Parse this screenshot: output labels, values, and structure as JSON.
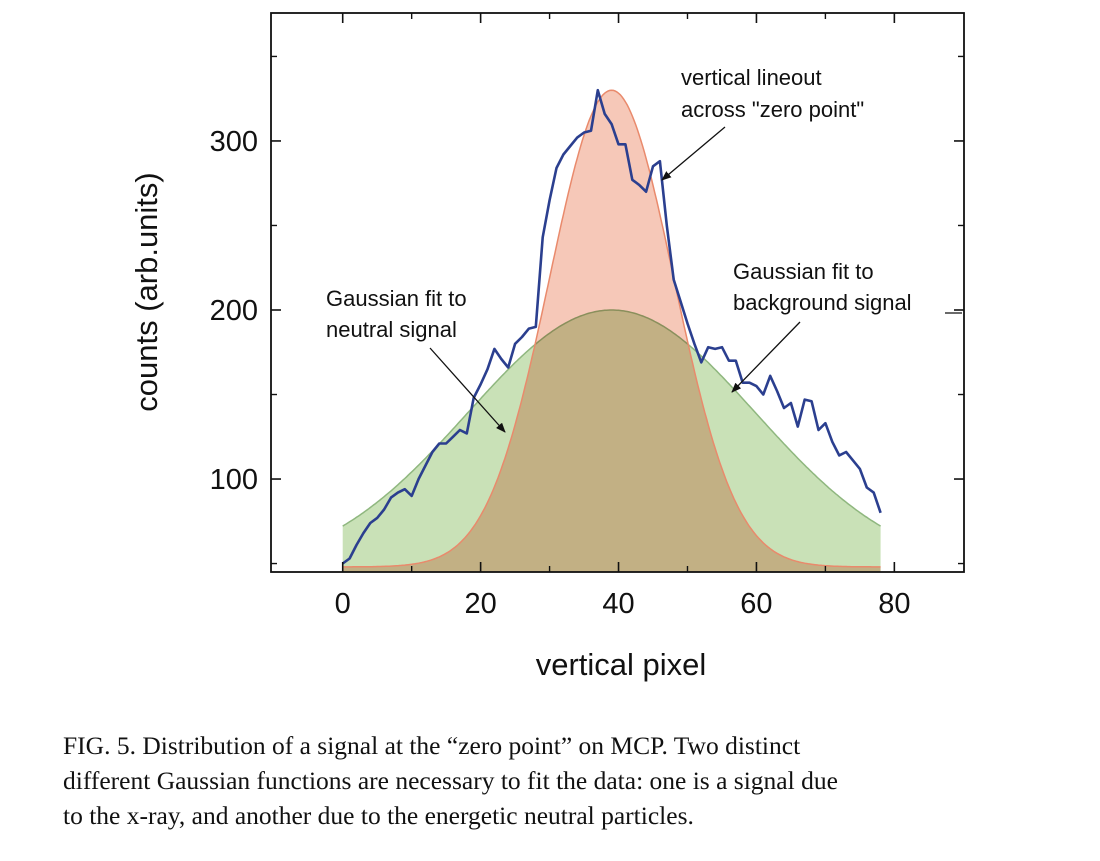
{
  "chart_data": {
    "type": "line",
    "title": "",
    "xlabel": "vertical pixel",
    "ylabel": "counts (arb.units)",
    "xlim": [
      -10.4,
      90.1
    ],
    "ylim": [
      45,
      375.7
    ],
    "xticks": [
      0,
      20,
      40,
      60,
      80
    ],
    "xticks_minor": [
      10,
      30,
      50,
      70
    ],
    "yticks": [
      100,
      200,
      300
    ],
    "yticks_minor": [
      50,
      150,
      250,
      350
    ],
    "grid": false,
    "series": [
      {
        "name": "vertical lineout across \"zero point\"",
        "type": "line",
        "color": "#2b3f8f",
        "x_start": 0,
        "x_step": 1,
        "values": [
          50,
          53,
          61,
          68,
          74,
          77,
          82,
          89,
          92,
          94,
          90,
          100,
          108,
          116,
          121,
          121,
          125,
          129,
          127,
          148,
          156,
          165,
          177,
          171,
          166,
          180,
          184,
          189,
          190,
          243,
          265,
          284,
          292,
          297,
          302,
          305,
          306,
          330,
          316,
          310,
          298,
          298,
          277,
          274,
          270,
          285,
          288,
          250,
          218,
          205,
          192,
          180,
          169,
          178,
          177,
          178,
          170,
          170,
          157,
          157,
          155,
          150,
          161,
          152,
          142,
          145,
          131,
          147,
          146,
          129,
          133,
          122,
          114,
          116,
          111,
          106,
          95,
          92,
          80
        ]
      },
      {
        "name": "Gaussian fit to background signal",
        "type": "area",
        "color": "#e98a6c",
        "fill": "#f2b39d",
        "fit": {
          "offset": 48,
          "amplitude": 282,
          "center": 39,
          "sigma": 9
        },
        "x_range": [
          0,
          78
        ]
      },
      {
        "name": "Gaussian fit to neutral signal",
        "type": "area",
        "color": "#8fb77f",
        "fill": "#c6dfb3",
        "fit": {
          "offset": 45,
          "amplitude": 155,
          "center": 39,
          "sigma": 20.9
        },
        "x_range": [
          0,
          78
        ]
      }
    ],
    "annotations": {
      "lineout": [
        "vertical lineout",
        "across \"zero point\""
      ],
      "background": [
        "Gaussian fit to",
        "background signal"
      ],
      "neutral": [
        "Gaussian fit to",
        "neutral signal"
      ]
    }
  },
  "caption": [
    "FIG. 5.  Distribution of a signal at the “zero point” on MCP. Two distinct",
    "different Gaussian functions are necessary to fit the data: one is a signal due",
    "to the x-ray, and another due to the energetic neutral particles."
  ]
}
